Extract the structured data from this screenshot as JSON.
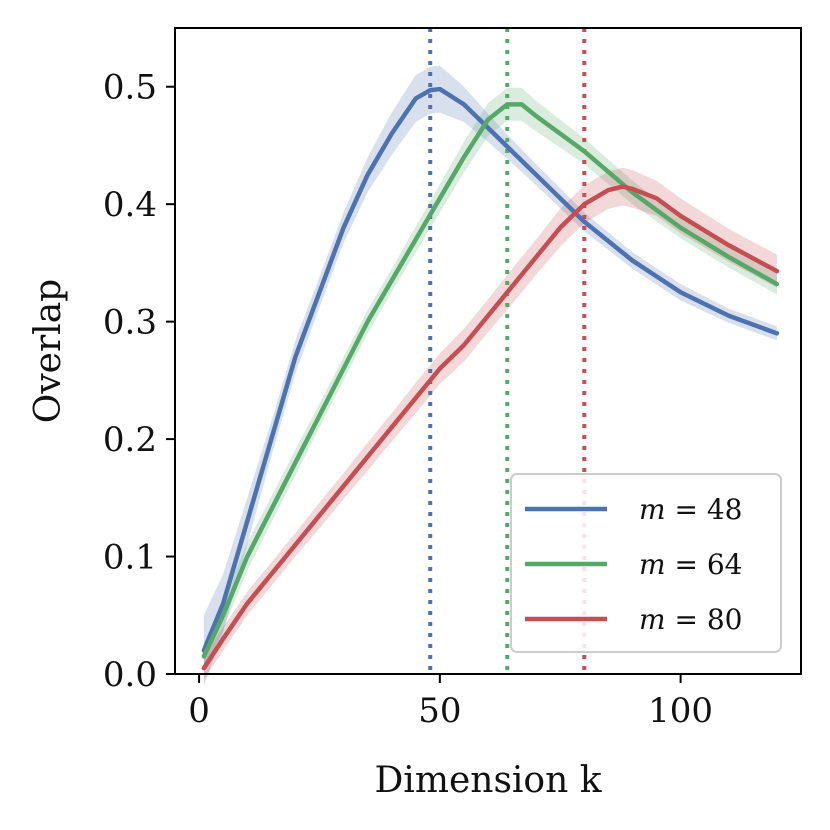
{
  "chart_data": {
    "type": "line",
    "title": "",
    "xlabel": "Dimension k",
    "ylabel": "Overlap",
    "xlim": [
      -5,
      125
    ],
    "ylim": [
      0,
      0.55
    ],
    "xticks": [
      0,
      50,
      100
    ],
    "xtick_labels": [
      "0",
      "50",
      "100"
    ],
    "yticks": [
      0.0,
      0.1,
      0.2,
      0.3,
      0.4,
      0.5
    ],
    "ytick_labels": [
      "0.0",
      "0.1",
      "0.2",
      "0.3",
      "0.4",
      "0.5"
    ],
    "grid": false,
    "legend_position": "lower-right",
    "series": [
      {
        "name": "m = 48",
        "legend_var": "m",
        "legend_rest": " = 48",
        "color": "#4c72b0",
        "vline": 48,
        "x": [
          1,
          5,
          10,
          15,
          20,
          25,
          30,
          35,
          40,
          45,
          48,
          50,
          55,
          60,
          65,
          70,
          80,
          90,
          100,
          110,
          120
        ],
        "y": [
          0.02,
          0.06,
          0.13,
          0.2,
          0.27,
          0.325,
          0.38,
          0.425,
          0.46,
          0.49,
          0.497,
          0.498,
          0.485,
          0.465,
          0.445,
          0.425,
          0.385,
          0.352,
          0.325,
          0.305,
          0.29
        ],
        "band": [
          0.03,
          0.025,
          0.02,
          0.015,
          0.014,
          0.013,
          0.013,
          0.015,
          0.018,
          0.02,
          0.02,
          0.02,
          0.015,
          0.012,
          0.01,
          0.009,
          0.008,
          0.007,
          0.007,
          0.006,
          0.006
        ]
      },
      {
        "name": "m = 64",
        "legend_var": "m",
        "legend_rest": " = 64",
        "color": "#55a868",
        "vline": 64,
        "x": [
          1,
          5,
          10,
          15,
          20,
          25,
          30,
          35,
          40,
          45,
          50,
          55,
          60,
          64,
          67,
          70,
          75,
          80,
          90,
          100,
          110,
          120
        ],
        "y": [
          0.015,
          0.05,
          0.1,
          0.14,
          0.18,
          0.22,
          0.26,
          0.3,
          0.335,
          0.37,
          0.405,
          0.44,
          0.472,
          0.485,
          0.485,
          0.475,
          0.46,
          0.445,
          0.41,
          0.38,
          0.355,
          0.332
        ],
        "band": [
          0.012,
          0.012,
          0.012,
          0.011,
          0.011,
          0.01,
          0.01,
          0.01,
          0.01,
          0.011,
          0.012,
          0.013,
          0.014,
          0.014,
          0.014,
          0.013,
          0.012,
          0.011,
          0.01,
          0.009,
          0.009,
          0.009
        ]
      },
      {
        "name": "m = 80",
        "legend_var": "m",
        "legend_rest": " = 80",
        "color": "#c44e52",
        "vline": 80,
        "x": [
          1,
          5,
          10,
          15,
          20,
          25,
          30,
          35,
          40,
          45,
          50,
          55,
          60,
          65,
          70,
          75,
          80,
          85,
          88,
          90,
          95,
          100,
          110,
          120
        ],
        "y": [
          0.005,
          0.03,
          0.06,
          0.085,
          0.11,
          0.135,
          0.16,
          0.185,
          0.21,
          0.235,
          0.26,
          0.28,
          0.305,
          0.33,
          0.355,
          0.38,
          0.4,
          0.412,
          0.415,
          0.413,
          0.405,
          0.39,
          0.365,
          0.343
        ],
        "band": [
          0.01,
          0.01,
          0.01,
          0.01,
          0.01,
          0.011,
          0.011,
          0.012,
          0.012,
          0.013,
          0.013,
          0.014,
          0.014,
          0.015,
          0.015,
          0.016,
          0.016,
          0.016,
          0.016,
          0.016,
          0.015,
          0.015,
          0.014,
          0.014
        ]
      }
    ]
  }
}
